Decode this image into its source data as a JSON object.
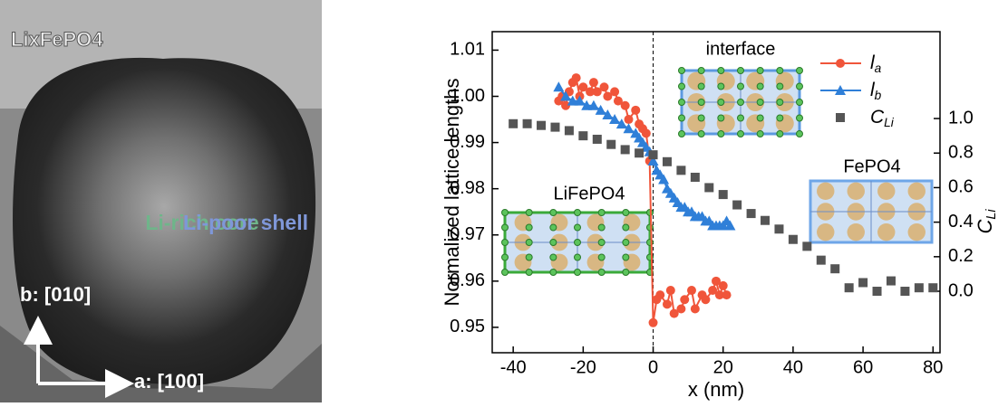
{
  "image_labels": {
    "compound": "LixFePO4",
    "core": "Li-rich core",
    "shell": "Li-poor shell",
    "b_axis": "b: [010]",
    "a_axis": "a: [100]"
  },
  "chart_data": {
    "type": "scatter",
    "xlabel": "x (nm)",
    "ylabel": "Normalized lattice lengths",
    "y2label": "CLi",
    "annotations": [
      "interface",
      "LiFePO4",
      "FePO4"
    ],
    "xlim": [
      -46,
      82
    ],
    "xticks": [
      -40,
      -20,
      0,
      20,
      40,
      60,
      80
    ],
    "ylim": [
      0.9445,
      1.014
    ],
    "yticks": [
      0.95,
      0.96,
      0.97,
      0.98,
      0.99,
      {
        "value": 1,
        "label": "1.00"
      },
      1.01
    ],
    "y2lim": [
      -0.356,
      1.503
    ],
    "y2ticks": [
      {
        "value": 0,
        "label": "0.0"
      },
      0.2,
      0.4,
      0.6,
      0.8,
      {
        "value": 1,
        "label": "1.0"
      }
    ],
    "series": [
      {
        "name": "la",
        "color": "#f0553a",
        "marker": "circle",
        "line": true,
        "x": [
          -27,
          -26,
          -25,
          -24,
          -23,
          -22,
          -21,
          -20,
          -18,
          -17,
          -16,
          -14,
          -13,
          -11,
          -10,
          -8,
          -7,
          -5,
          -4,
          -3,
          -2,
          -1,
          0,
          1,
          2,
          4,
          5,
          6,
          8,
          9,
          11,
          12,
          14,
          15,
          17,
          18,
          19,
          20,
          21
        ],
        "values": [
          0.999,
          1.0,
          0.998,
          1.001,
          1.003,
          1.004,
          1.0,
          1.002,
          1.001,
          1.003,
          1.001,
          1.002,
          1.0,
          1.001,
          0.999,
          0.998,
          0.995,
          0.997,
          0.994,
          0.993,
          0.992,
          0.986,
          0.951,
          0.956,
          0.957,
          0.955,
          0.958,
          0.953,
          0.954,
          0.956,
          0.958,
          0.954,
          0.957,
          0.956,
          0.958,
          0.96,
          0.957,
          0.959,
          0.957
        ]
      },
      {
        "name": "lb",
        "color": "#2f7fd8",
        "marker": "triangle",
        "line": true,
        "x": [
          -27,
          -25,
          -23,
          -21,
          -19,
          -17,
          -15,
          -13,
          -11,
          -9,
          -7,
          -5,
          -4,
          -3,
          -2,
          -1,
          0,
          1,
          2,
          3,
          4,
          5,
          6,
          7,
          8,
          9,
          10,
          11,
          12,
          13,
          14,
          15,
          16,
          17,
          18,
          19,
          20,
          21,
          22
        ],
        "values": [
          1.002,
          1.0,
          0.999,
          0.999,
          0.998,
          0.998,
          0.997,
          0.996,
          0.995,
          0.994,
          0.993,
          0.992,
          0.991,
          0.99,
          0.989,
          0.988,
          0.986,
          0.984,
          0.983,
          0.982,
          0.98,
          0.979,
          0.978,
          0.977,
          0.976,
          0.976,
          0.975,
          0.975,
          0.974,
          0.974,
          0.974,
          0.973,
          0.973,
          0.972,
          0.972,
          0.972,
          0.972,
          0.973,
          0.972
        ]
      },
      {
        "name": "CLi",
        "color": "#555555",
        "marker": "square",
        "line": false,
        "axis": "y2",
        "x": [
          -40,
          -36,
          -32,
          -28,
          -24,
          -20,
          -16,
          -12,
          -8,
          -4,
          0,
          4,
          8,
          12,
          16,
          20,
          24,
          28,
          32,
          36,
          40,
          44,
          48,
          52,
          56,
          60,
          64,
          68,
          72,
          76,
          80
        ],
        "values": [
          0.97,
          0.97,
          0.96,
          0.95,
          0.93,
          0.9,
          0.88,
          0.85,
          0.82,
          0.8,
          0.79,
          0.75,
          0.7,
          0.66,
          0.6,
          0.56,
          0.5,
          0.45,
          0.41,
          0.36,
          0.3,
          0.26,
          0.18,
          0.13,
          0.02,
          0.05,
          0.0,
          0.06,
          0.0,
          0.02,
          0.02
        ]
      }
    ]
  }
}
